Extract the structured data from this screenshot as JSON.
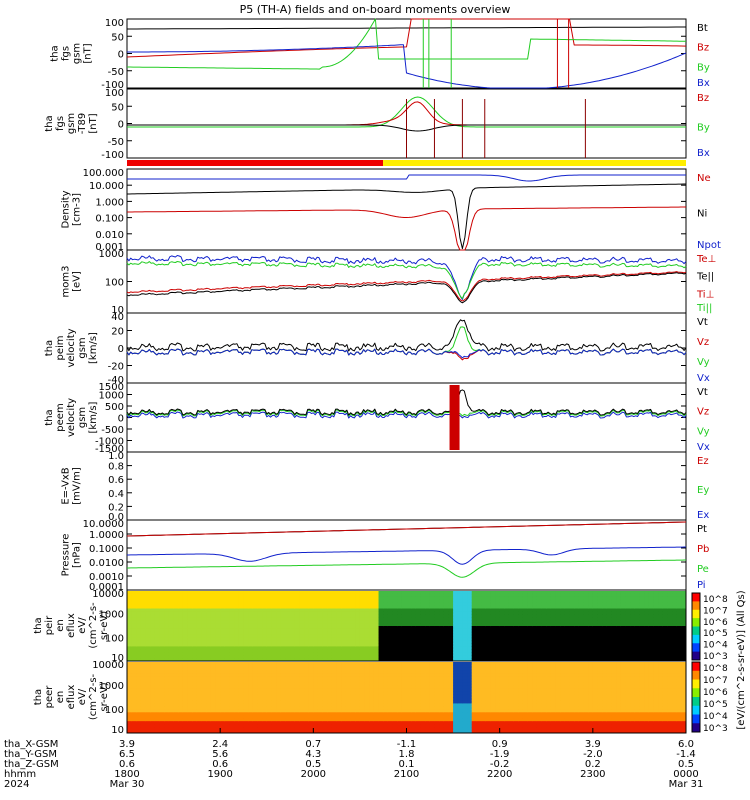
{
  "title": "P5 (TH-A) fields and on-board moments overview",
  "colors": {
    "black": "#000000",
    "red": "#cc0000",
    "green": "#22cc22",
    "blue": "#1122cc",
    "yellow": "#ffee00"
  },
  "chart_data": [
    {
      "type": "line",
      "id": "fgs",
      "ylabel": [
        "tha",
        "fgs",
        "gsm",
        "[nT]"
      ],
      "ylim": [
        -100,
        100
      ],
      "ticks": [
        "100",
        "50",
        "0",
        "-50",
        "-100"
      ],
      "legend": [
        {
          "name": "Bt",
          "color": "#000000"
        },
        {
          "name": "Bz",
          "color": "#cc0000"
        },
        {
          "name": "By",
          "color": "#22cc22"
        },
        {
          "name": "Bx",
          "color": "#1122cc"
        }
      ]
    },
    {
      "type": "line",
      "id": "fgs-dc",
      "ylabel": [
        "tha",
        "fgs",
        "gsm",
        "-T89",
        "[nT]"
      ],
      "ylim": [
        -125,
        75
      ],
      "ticks": [
        "100",
        "50",
        "0",
        "-50",
        "-100"
      ],
      "legend": [
        {
          "name": "Bz",
          "color": "#cc0000"
        },
        {
          "name": "By",
          "color": "#22cc22"
        },
        {
          "name": "Bx",
          "color": "#1122cc"
        }
      ]
    },
    {
      "type": "line",
      "id": "density",
      "ylabel": [
        "Density",
        "[cm-3]"
      ],
      "scale": "log",
      "ylim": [
        0.001,
        100
      ],
      "ticks": [
        "100.000",
        "10.000",
        "1.000",
        "0.100",
        "0.010",
        "0.001"
      ],
      "legend": [
        {
          "name": "Ne",
          "color": "#cc0000"
        },
        {
          "name": "Ni",
          "color": "#000000"
        },
        {
          "name": "Npot",
          "color": "#1122cc"
        }
      ]
    },
    {
      "type": "line",
      "id": "temperature",
      "ylabel": [
        "mom3",
        "[eV]"
      ],
      "scale": "log",
      "ylim": [
        5,
        5000
      ],
      "ticks": [
        "1000",
        "100",
        "10"
      ],
      "legend": [
        {
          "name": "Te⊥",
          "color": "#cc0000"
        },
        {
          "name": "Te||",
          "color": "#000000"
        },
        {
          "name": "Ti⊥",
          "color": "#cc0000"
        },
        {
          "name": "Ti||",
          "color": "#22cc22"
        }
      ]
    },
    {
      "type": "line",
      "id": "peim-velocity",
      "ylabel": [
        "tha",
        "peim",
        "velocity",
        "gsm",
        "[km/s]"
      ],
      "ylim": [
        -40,
        45
      ],
      "ticks": [
        "40",
        "20",
        "0",
        "-20",
        "-40"
      ],
      "legend": [
        {
          "name": "Vt",
          "color": "#000000"
        },
        {
          "name": "Vz",
          "color": "#cc0000"
        },
        {
          "name": "Vy",
          "color": "#22cc22"
        },
        {
          "name": "Vx",
          "color": "#1122cc"
        }
      ]
    },
    {
      "type": "line",
      "id": "peem-velocity",
      "ylabel": [
        "tha",
        "peem",
        "velocity",
        "gsm",
        "[km/s]"
      ],
      "ylim": [
        -1500,
        1500
      ],
      "ticks": [
        "1500",
        "1000",
        "500",
        "0",
        "-500",
        "-1000",
        "-1500"
      ],
      "legend": [
        {
          "name": "Vt",
          "color": "#000000"
        },
        {
          "name": "Vz",
          "color": "#cc0000"
        },
        {
          "name": "Vy",
          "color": "#22cc22"
        },
        {
          "name": "Vx",
          "color": "#1122cc"
        }
      ]
    },
    {
      "type": "line",
      "id": "efield",
      "ylabel": [
        "E=-VxB",
        "[mV/m]"
      ],
      "ylim": [
        0,
        1
      ],
      "ticks": [
        "1.0",
        "0.8",
        "0.6",
        "0.4",
        "0.2",
        "0.0"
      ],
      "legend": [
        {
          "name": "Ez",
          "color": "#cc0000"
        },
        {
          "name": "Ey",
          "color": "#22cc22"
        },
        {
          "name": "Ex",
          "color": "#1122cc"
        }
      ]
    },
    {
      "type": "line",
      "id": "pressure",
      "ylabel": [
        "Pressure",
        "[nPa]"
      ],
      "scale": "log",
      "ylim": [
        0.0001,
        10
      ],
      "ticks": [
        "10.0000",
        "1.0000",
        "0.1000",
        "0.0100",
        "0.0010",
        "0.0001"
      ],
      "legend": [
        {
          "name": "Pt",
          "color": "#000000"
        },
        {
          "name": "Pb",
          "color": "#cc0000"
        },
        {
          "name": "Pe",
          "color": "#22cc22"
        },
        {
          "name": "Pi",
          "color": "#1122cc"
        }
      ]
    },
    {
      "type": "heatmap",
      "id": "peir-spec",
      "ylabel": [
        "tha",
        "peir",
        "en",
        "eflux",
        "eV/",
        "(cm^2-s-",
        "sr-eV)"
      ],
      "scale": "log",
      "ticks": [
        "10000",
        "1000",
        "100",
        "10"
      ]
    },
    {
      "type": "heatmap",
      "id": "peer-spec",
      "ylabel": [
        "tha",
        "peer",
        "en",
        "eflux",
        "eV/",
        "(cm^2-s-",
        "sr-eV)"
      ],
      "scale": "log",
      "ticks": [
        "10000",
        "1000",
        "100",
        "10"
      ]
    }
  ],
  "colorbar": {
    "label": "[eV/(cm^2-s-sr-eV)] (All Qs)",
    "upper_ticks": [
      "10^8",
      "10^7",
      "10^6",
      "10^5",
      "10^4",
      "10^3"
    ],
    "lower_ticks": [
      "10^8",
      "10^7",
      "10^6",
      "10^5",
      "10^4",
      "10^3"
    ]
  },
  "x_axis": {
    "rows": [
      {
        "label": "tha_X-GSM",
        "values": [
          "3.9",
          "2.4",
          "0.7",
          "-1.1",
          "0.9",
          "3.9",
          "6.0"
        ]
      },
      {
        "label": "tha_Y-GSM",
        "values": [
          "6.5",
          "5.6",
          "4.3",
          "1.8",
          "-1.9",
          "-2.0",
          "-1.4"
        ]
      },
      {
        "label": "tha_Z-GSM",
        "values": [
          "0.6",
          "0.6",
          "0.5",
          "0.1",
          "-0.2",
          "0.2",
          "0.5"
        ]
      },
      {
        "label": "hhmm",
        "values": [
          "1800",
          "1900",
          "2000",
          "2100",
          "2200",
          "2300",
          "0000"
        ]
      },
      {
        "label": "2024",
        "values": [
          "Mar 30",
          "",
          "",
          "",
          "",
          "",
          "Mar 31"
        ]
      }
    ]
  }
}
